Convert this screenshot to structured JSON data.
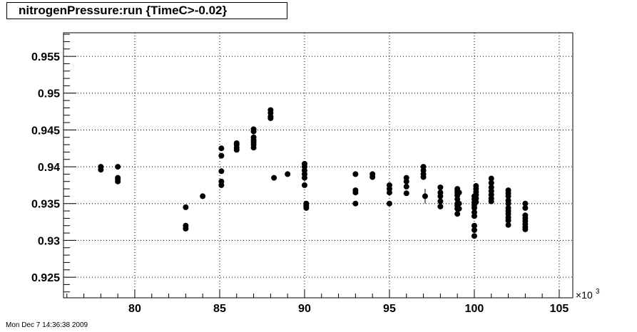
{
  "chart_data": {
    "type": "scatter",
    "title": "nitrogenPressure:run {TimeC>-0.02}",
    "xlabel": "",
    "ylabel": "",
    "x_multiplier_label": "×10",
    "x_multiplier_exponent": "3",
    "xlim": [
      75.8,
      105.8
    ],
    "ylim": [
      0.9222,
      0.9582
    ],
    "x_ticks": [
      80,
      85,
      90,
      95,
      100,
      105
    ],
    "y_ticks": [
      0.925,
      0.93,
      0.935,
      0.94,
      0.945,
      0.95,
      0.955
    ],
    "x_tick_labels": [
      "80",
      "85",
      "90",
      "95",
      "100",
      "105"
    ],
    "y_tick_labels": [
      "0.925",
      "0.93",
      "0.935",
      "0.94",
      "0.945",
      "0.95",
      "0.955"
    ],
    "grid": true,
    "series": [
      {
        "color": "#000000",
        "points": [
          [
            78.0,
            0.94
          ],
          [
            78.0,
            0.9396
          ],
          [
            79.0,
            0.94
          ],
          [
            79.0,
            0.9385
          ],
          [
            79.0,
            0.9383
          ],
          [
            79.0,
            0.938
          ],
          [
            83.0,
            0.9345
          ],
          [
            83.0,
            0.932
          ],
          [
            83.0,
            0.9316
          ],
          [
            84.0,
            0.936
          ],
          [
            85.1,
            0.9425
          ],
          [
            85.1,
            0.9415
          ],
          [
            85.1,
            0.9394
          ],
          [
            85.1,
            0.938
          ],
          [
            85.1,
            0.9375
          ],
          [
            86.0,
            0.9432
          ],
          [
            86.0,
            0.943
          ],
          [
            86.0,
            0.9426
          ],
          [
            86.0,
            0.9423
          ],
          [
            87.0,
            0.9451
          ],
          [
            87.0,
            0.9448
          ],
          [
            87.0,
            0.944
          ],
          [
            87.0,
            0.9436
          ],
          [
            87.0,
            0.9433
          ],
          [
            87.0,
            0.943
          ],
          [
            87.0,
            0.9426
          ],
          [
            88.0,
            0.9477
          ],
          [
            88.0,
            0.9473
          ],
          [
            88.0,
            0.9468
          ],
          [
            88.0,
            0.9466
          ],
          [
            88.2,
            0.9385
          ],
          [
            89.0,
            0.939
          ],
          [
            90.0,
            0.9404
          ],
          [
            90.0,
            0.94
          ],
          [
            90.0,
            0.9395
          ],
          [
            90.0,
            0.939
          ],
          [
            90.0,
            0.9385
          ],
          [
            90.0,
            0.9375
          ],
          [
            90.1,
            0.935
          ],
          [
            90.1,
            0.9347
          ],
          [
            90.1,
            0.9344
          ],
          [
            93.0,
            0.939
          ],
          [
            93.0,
            0.9368
          ],
          [
            93.0,
            0.9365
          ],
          [
            93.0,
            0.935
          ],
          [
            94.0,
            0.939
          ],
          [
            94.0,
            0.9386
          ],
          [
            95.0,
            0.9375
          ],
          [
            95.0,
            0.937
          ],
          [
            95.0,
            0.9365
          ],
          [
            95.0,
            0.935
          ],
          [
            96.0,
            0.9385
          ],
          [
            96.0,
            0.938
          ],
          [
            96.0,
            0.9373
          ],
          [
            96.0,
            0.9364
          ],
          [
            97.0,
            0.94
          ],
          [
            97.0,
            0.9395
          ],
          [
            97.0,
            0.939
          ],
          [
            97.0,
            0.9386
          ],
          [
            97.1,
            0.936
          ],
          [
            98.0,
            0.9372
          ],
          [
            98.0,
            0.9365
          ],
          [
            98.0,
            0.936
          ],
          [
            98.0,
            0.9353
          ],
          [
            98.0,
            0.9346
          ],
          [
            99.0,
            0.937
          ],
          [
            99.0,
            0.9367
          ],
          [
            99.0,
            0.9364
          ],
          [
            99.0,
            0.9361
          ],
          [
            99.0,
            0.9356
          ],
          [
            99.0,
            0.935
          ],
          [
            99.0,
            0.9347
          ],
          [
            99.0,
            0.9343
          ],
          [
            99.0,
            0.9336
          ],
          [
            99.1,
            0.9365
          ],
          [
            99.1,
            0.935
          ],
          [
            99.1,
            0.9343
          ],
          [
            100.0,
            0.936
          ],
          [
            100.0,
            0.9356
          ],
          [
            100.0,
            0.9352
          ],
          [
            100.0,
            0.9348
          ],
          [
            100.0,
            0.9344
          ],
          [
            100.0,
            0.9338
          ],
          [
            100.0,
            0.9333
          ],
          [
            100.0,
            0.932
          ],
          [
            100.0,
            0.9314
          ],
          [
            100.0,
            0.9306
          ],
          [
            100.1,
            0.9374
          ],
          [
            100.1,
            0.937
          ],
          [
            100.1,
            0.9366
          ],
          [
            100.1,
            0.9362
          ],
          [
            100.1,
            0.9357
          ],
          [
            100.1,
            0.9352
          ],
          [
            101.0,
            0.9384
          ],
          [
            101.0,
            0.9378
          ],
          [
            101.0,
            0.9372
          ],
          [
            101.0,
            0.9367
          ],
          [
            101.0,
            0.9362
          ],
          [
            101.0,
            0.9357
          ],
          [
            101.0,
            0.9353
          ],
          [
            102.0,
            0.9368
          ],
          [
            102.0,
            0.9364
          ],
          [
            102.0,
            0.936
          ],
          [
            102.0,
            0.9354
          ],
          [
            102.0,
            0.935
          ],
          [
            102.0,
            0.9344
          ],
          [
            102.0,
            0.934
          ],
          [
            102.0,
            0.9336
          ],
          [
            102.0,
            0.9331
          ],
          [
            102.0,
            0.9327
          ],
          [
            102.0,
            0.9321
          ],
          [
            103.0,
            0.935
          ],
          [
            103.0,
            0.9344
          ],
          [
            103.0,
            0.9334
          ],
          [
            103.0,
            0.933
          ],
          [
            103.0,
            0.9326
          ],
          [
            103.0,
            0.9322
          ],
          [
            103.0,
            0.9318
          ],
          [
            103.0,
            0.9315
          ]
        ]
      }
    ],
    "error_bars": [
      {
        "x": 97.1,
        "y": 0.936,
        "ylow": 0.935,
        "yhigh": 0.937
      }
    ]
  },
  "timestamp": "Mon Dec  7 14:36:38 2009"
}
